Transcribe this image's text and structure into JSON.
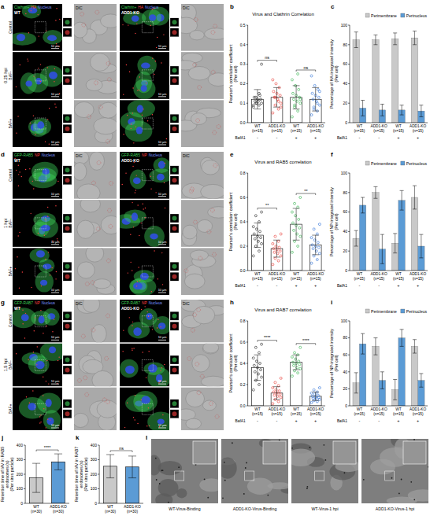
{
  "chart_data": [
    {
      "panel": "b",
      "type": "bar",
      "title": "Virus and Clathrin Correlation",
      "y_label": [
        "Pearson's correlation coefficient",
        "(Per cell)"
      ],
      "categories": [
        "WT (n=15)",
        "ADD1-KO (n=15)",
        "WT (n=15)",
        "ADD1-KO (n=15)"
      ],
      "values": [
        0.12,
        0.13,
        0.13,
        0.12
      ],
      "errors": [
        0.05,
        0.05,
        0.06,
        0.06
      ],
      "points": [
        [
          0.08,
          0.09,
          0.1,
          0.1,
          0.11,
          0.11,
          0.12,
          0.12,
          0.13,
          0.14,
          0.1,
          0.09,
          0.15,
          0.13,
          0.3
        ],
        [
          0.05,
          0.07,
          0.09,
          0.1,
          0.12,
          0.13,
          0.14,
          0.15,
          0.16,
          0.18,
          0.2,
          0.22,
          0.11,
          0.13,
          0.08
        ],
        [
          0.03,
          0.06,
          0.08,
          0.1,
          0.11,
          0.12,
          0.13,
          0.14,
          0.15,
          0.17,
          0.19,
          0.22,
          0.25,
          0.09,
          0.12
        ],
        [
          0.04,
          0.06,
          0.08,
          0.09,
          0.11,
          0.12,
          0.13,
          0.14,
          0.15,
          0.17,
          0.19,
          0.24,
          0.1,
          0.07,
          0.16
        ]
      ],
      "colors": [
        "#222222",
        "#e8302a",
        "#2fb04a",
        "#2a6fd6"
      ],
      "ylim": [
        0,
        0.5
      ],
      "yticks": [
        {
          "value": 0,
          "label": "0.0"
        },
        0.1,
        0.2,
        0.3,
        0.4,
        0.5
      ],
      "grid": false,
      "bafa1": {
        "label": "BafA1",
        "signs": [
          "-",
          "-",
          "+",
          "+"
        ]
      },
      "annotations": [
        {
          "text": "ns",
          "pair": [
            0,
            1
          ]
        },
        {
          "text": "ns",
          "pair": [
            2,
            3
          ]
        }
      ]
    },
    {
      "panel": "c",
      "type": "grouped_bar",
      "y_label": [
        "Percentage of HA-integrated intensity",
        "(Per cell)"
      ],
      "categories": [
        "WT (n=15)",
        "ADD1-KO (n=15)",
        "WT (n=15)",
        "ADD1-KO (n=15)"
      ],
      "series": [
        {
          "name": "Perimembrane",
          "color": "#c9c9c9",
          "values": [
            85,
            85,
            86,
            87
          ],
          "errors": [
            8,
            5,
            6,
            7
          ]
        },
        {
          "name": "Perinucleus",
          "color": "#5b9bd5",
          "values": [
            15,
            13,
            13,
            12
          ],
          "errors": [
            8,
            6,
            5,
            6
          ]
        }
      ],
      "ylim": [
        0,
        100
      ],
      "yticks": [
        0,
        20,
        40,
        60,
        80,
        100
      ],
      "grid": false,
      "legend": "top",
      "bafa1": {
        "label": "BafA1",
        "signs": [
          "-",
          "-",
          "+",
          "+"
        ]
      }
    },
    {
      "panel": "e",
      "type": "bar",
      "title": "Virus and RAB5 correlation",
      "y_label": [
        "Pearson's correlation coefficient",
        "(Per cell)"
      ],
      "categories": [
        "WT (n=15)",
        "ADD1-KO (n=15)",
        "WT (n=15)",
        "ADD1-KO (n=15)"
      ],
      "values": [
        0.29,
        0.18,
        0.38,
        0.21
      ],
      "errors": [
        0.1,
        0.07,
        0.13,
        0.08
      ],
      "points": [
        [
          0.12,
          0.16,
          0.2,
          0.22,
          0.24,
          0.26,
          0.27,
          0.28,
          0.3,
          0.32,
          0.34,
          0.36,
          0.4,
          0.45,
          0.48
        ],
        [
          0.05,
          0.08,
          0.1,
          0.12,
          0.14,
          0.15,
          0.16,
          0.17,
          0.18,
          0.19,
          0.2,
          0.22,
          0.24,
          0.28,
          0.3
        ],
        [
          0.15,
          0.2,
          0.24,
          0.28,
          0.3,
          0.33,
          0.35,
          0.37,
          0.39,
          0.42,
          0.45,
          0.48,
          0.52,
          0.55,
          0.6
        ],
        [
          0.06,
          0.09,
          0.12,
          0.14,
          0.16,
          0.18,
          0.19,
          0.2,
          0.21,
          0.23,
          0.25,
          0.27,
          0.3,
          0.34,
          0.38
        ]
      ],
      "colors": [
        "#222222",
        "#e8302a",
        "#2fb04a",
        "#2a6fd6"
      ],
      "ylim": [
        0,
        0.8
      ],
      "yticks": [
        {
          "value": 0,
          "label": "0.0"
        },
        0.2,
        0.4,
        0.6,
        0.8
      ],
      "grid": false,
      "bafa1": {
        "label": "BafA1",
        "signs": [
          "-",
          "-",
          "+",
          "+"
        ]
      },
      "annotations": [
        {
          "text": "**",
          "pair": [
            0,
            1
          ]
        },
        {
          "text": "**",
          "pair": [
            2,
            3
          ]
        }
      ]
    },
    {
      "panel": "f",
      "type": "grouped_bar",
      "y_label": [
        "Percentage of NP-integrated intensity",
        "(Per cell)"
      ],
      "categories": [
        "WT (n=15)",
        "ADD1-KO (n=15)",
        "WT (n=15)",
        "ADD1-KO (n=15)"
      ],
      "series": [
        {
          "name": "Perimembrane",
          "color": "#c9c9c9",
          "values": [
            33,
            80,
            28,
            75
          ],
          "errors": [
            8,
            6,
            10,
            12
          ]
        },
        {
          "name": "Perinucleus",
          "color": "#5b9bd5",
          "values": [
            67,
            22,
            72,
            25
          ],
          "errors": [
            8,
            15,
            10,
            12
          ]
        }
      ],
      "ylim": [
        0,
        100
      ],
      "yticks": [
        0,
        20,
        40,
        60,
        80,
        100
      ],
      "grid": false,
      "legend": "top",
      "bafa1": {
        "label": "BafA1",
        "signs": [
          "-",
          "-",
          "+",
          "+"
        ]
      }
    },
    {
      "panel": "h",
      "type": "bar",
      "title": "Virus and RAB7 correlation",
      "y_label": [
        "Pearson's correlation coefficient",
        "(Per cell)"
      ],
      "categories": [
        "WT (n=15)",
        "ADD1-KO (n=15)",
        "WT (n=15)",
        "ADD1-KO (n=15)"
      ],
      "values": [
        0.36,
        0.12,
        0.41,
        0.09
      ],
      "errors": [
        0.12,
        0.06,
        0.07,
        0.04
      ],
      "points": [
        [
          0.15,
          0.2,
          0.24,
          0.27,
          0.3,
          0.32,
          0.34,
          0.36,
          0.38,
          0.4,
          0.42,
          0.45,
          0.5,
          0.55,
          0.58
        ],
        [
          0.02,
          0.04,
          0.06,
          0.08,
          0.09,
          0.1,
          0.11,
          0.12,
          0.13,
          0.14,
          0.15,
          0.17,
          0.19,
          0.22,
          0.26
        ],
        [
          0.28,
          0.31,
          0.33,
          0.35,
          0.36,
          0.38,
          0.39,
          0.4,
          0.41,
          0.42,
          0.44,
          0.46,
          0.48,
          0.5,
          0.55
        ],
        [
          0.03,
          0.04,
          0.05,
          0.06,
          0.07,
          0.07,
          0.08,
          0.08,
          0.09,
          0.1,
          0.11,
          0.12,
          0.13,
          0.15,
          0.17
        ]
      ],
      "colors": [
        "#222222",
        "#e8302a",
        "#2fb04a",
        "#2a6fd6"
      ],
      "ylim": [
        0,
        0.8
      ],
      "yticks": [
        {
          "value": 0,
          "label": "0.0"
        },
        0.2,
        0.4,
        0.6,
        0.8
      ],
      "grid": false,
      "bafa1": {
        "label": "BafA1",
        "signs": [
          "-",
          "-",
          "+",
          "+"
        ]
      },
      "annotations": [
        {
          "text": "****",
          "pair": [
            0,
            1
          ]
        },
        {
          "text": "****",
          "pair": [
            2,
            3
          ]
        }
      ]
    },
    {
      "panel": "i",
      "type": "grouped_bar",
      "y_label": [
        "Percentage of NP-integrated intensity",
        "(Per cell)"
      ],
      "categories": [
        "WT (n=15)",
        "ADD1-KO (n=15)",
        "WT (n=15)",
        "ADD1-KO (n=15)"
      ],
      "series": [
        {
          "name": "Perimembrane",
          "color": "#c9c9c9",
          "values": [
            27,
            70,
            19,
            70
          ],
          "errors": [
            12,
            10,
            12,
            8
          ]
        },
        {
          "name": "Perinucleus",
          "color": "#5b9bd5",
          "values": [
            73,
            30,
            80,
            30
          ],
          "errors": [
            12,
            10,
            10,
            8
          ]
        }
      ],
      "ylim": [
        0,
        100
      ],
      "yticks": [
        0,
        20,
        40,
        60,
        80,
        100
      ],
      "grid": false,
      "legend": "top",
      "bafa1": {
        "label": "BafA1",
        "signs": [
          "-",
          "-",
          "+",
          "+"
        ]
      }
    },
    {
      "panel": "j",
      "type": "bar",
      "y_label": [
        "Retention time of IAV in RAB5 endosomes (s)",
        "(Per virus particle)"
      ],
      "categories": [
        "WT (n=30)",
        "ADD1-KO (n=30)"
      ],
      "values": [
        175,
        285
      ],
      "errors": [
        100,
        55
      ],
      "colors": [
        "#c9c9c9",
        "#5b9bd5"
      ],
      "ylim": [
        0,
        400
      ],
      "yticks": [
        0,
        100,
        200,
        300,
        400
      ],
      "grid": false,
      "annotations": [
        {
          "text": "****",
          "pair": [
            0,
            1
          ]
        }
      ]
    },
    {
      "panel": "k",
      "type": "bar",
      "y_label": [
        "Retention time of IAV in RAB7 endosomes (s)",
        "(Per virus particle)"
      ],
      "categories": [
        "WT (n=30)",
        "ADD1-KO (n=30)"
      ],
      "values": [
        255,
        250
      ],
      "errors": [
        80,
        75
      ],
      "colors": [
        "#c9c9c9",
        "#5b9bd5"
      ],
      "ylim": [
        0,
        400
      ],
      "yticks": [
        0,
        100,
        200,
        300,
        400
      ],
      "grid": false,
      "annotations": [
        {
          "text": "ns",
          "pair": [
            0,
            1
          ]
        }
      ]
    }
  ],
  "microscopy": [
    {
      "panel": "a",
      "hpi": "0.25 hpi",
      "channels": [
        {
          "text": "Clathrin+",
          "color": "#3fd45a"
        },
        {
          "text": "HA",
          "color": "#ff4040"
        },
        {
          "text": "Nucleus",
          "color": "#7a95ff"
        }
      ],
      "columns": [
        "WT",
        "ADD1-KO"
      ],
      "dic": "DIC",
      "rows": [
        "Control",
        "BAF-",
        "BAF+"
      ],
      "scale": "10 μm"
    },
    {
      "panel": "d",
      "hpi": "1 hpi",
      "channels": [
        {
          "text": "GFP-RAB5",
          "color": "#3fd45a"
        },
        {
          "text": "NP",
          "color": "#ff4040"
        },
        {
          "text": "Nucleus",
          "color": "#7a95ff"
        }
      ],
      "columns": [
        "WT",
        "ADD1-KO"
      ],
      "dic": "DIC",
      "rows": [
        "Control",
        "BAF-",
        "BAF+"
      ],
      "scale": "10 μm"
    },
    {
      "panel": "g",
      "hpi": "1.5 hpi",
      "channels": [
        {
          "text": "GFP-RAB7",
          "color": "#3fd45a"
        },
        {
          "text": "NP",
          "color": "#ff4040"
        },
        {
          "text": "Nucleus",
          "color": "#7a95ff"
        }
      ],
      "columns": [
        "WT",
        "ADD1-KO"
      ],
      "dic": "DIC",
      "rows": [
        "Control",
        "BAF-",
        "BAF+"
      ],
      "scale": "10 μm"
    }
  ],
  "em": {
    "panel": "l",
    "captions": [
      "WT-Virus-Binding",
      "ADD1-KO-Virus-Binding",
      "WT-Virus-1 hpi",
      "ADD1-KO-Virus-1 hpi"
    ]
  }
}
